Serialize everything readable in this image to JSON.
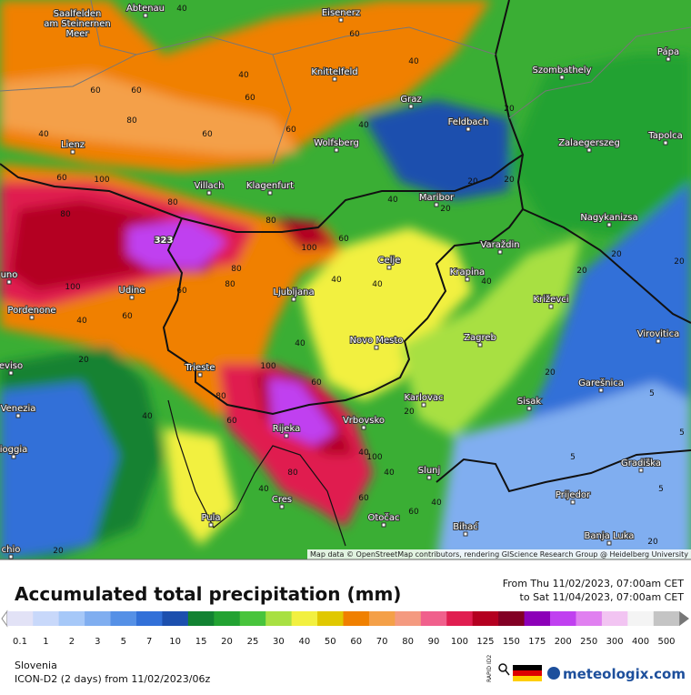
{
  "map": {
    "cities": [
      {
        "lines": [
          "Saalfelden",
          "am Steinernen",
          "Meer"
        ]
      },
      {
        "lines": [
          "Abtenau"
        ]
      },
      {
        "lines": [
          "Eisenerz"
        ]
      },
      {
        "lines": [
          "Knittelfeld"
        ]
      },
      {
        "lines": [
          "Graz"
        ]
      },
      {
        "lines": [
          "Szombathely"
        ]
      },
      {
        "lines": [
          "Pápa"
        ]
      },
      {
        "lines": [
          "Feldbach"
        ]
      },
      {
        "lines": [
          "Lienz"
        ]
      },
      {
        "lines": [
          "Wolfsberg"
        ]
      },
      {
        "lines": [
          "Zalaegerszeg"
        ]
      },
      {
        "lines": [
          "Tapolca"
        ]
      },
      {
        "lines": [
          "Villach"
        ]
      },
      {
        "lines": [
          "Klagenfurt"
        ]
      },
      {
        "lines": [
          "Maribor"
        ]
      },
      {
        "lines": [
          "Nagykanizsa"
        ]
      },
      {
        "lines": [
          "Varaždin"
        ]
      },
      {
        "lines": [
          "Udine"
        ]
      },
      {
        "lines": [
          "Celje"
        ]
      },
      {
        "lines": [
          "Krapina"
        ]
      },
      {
        "lines": [
          "Križevci"
        ]
      },
      {
        "lines": [
          "Pordenone"
        ]
      },
      {
        "lines": [
          "Ljubljana"
        ]
      },
      {
        "lines": [
          "Novo Mesto"
        ]
      },
      {
        "lines": [
          "Zagreb"
        ]
      },
      {
        "lines": [
          "Virovitica"
        ]
      },
      {
        "lines": [
          "Trieste"
        ]
      },
      {
        "lines": [
          "Karlovac"
        ]
      },
      {
        "lines": [
          "Sisak"
        ]
      },
      {
        "lines": [
          "Garešnica"
        ]
      },
      {
        "lines": [
          "Venezia"
        ]
      },
      {
        "lines": [
          "Rijeka"
        ]
      },
      {
        "lines": [
          "Vrbovsko"
        ]
      },
      {
        "lines": [
          "ioggia"
        ]
      },
      {
        "lines": [
          "Slunj"
        ]
      },
      {
        "lines": [
          "Gradiška"
        ]
      },
      {
        "lines": [
          "Prijedor"
        ]
      },
      {
        "lines": [
          "Cres"
        ]
      },
      {
        "lines": [
          "Pula"
        ]
      },
      {
        "lines": [
          "Otočac"
        ]
      },
      {
        "lines": [
          "Bihać"
        ]
      },
      {
        "lines": [
          "Banja Luka"
        ]
      },
      {
        "lines": [
          "uno"
        ]
      },
      {
        "lines": [
          "eviso"
        ]
      },
      {
        "lines": [
          "chio"
        ]
      }
    ],
    "max_label": "323",
    "contour_labels": [
      40,
      40,
      60,
      40,
      60,
      60,
      40,
      80,
      60,
      60,
      60,
      40,
      20,
      20,
      60,
      100,
      80,
      80,
      80,
      100,
      60,
      40,
      20,
      40,
      40,
      80,
      80,
      60,
      100,
      40,
      60,
      40,
      20,
      20,
      20,
      40,
      60,
      80,
      100,
      60,
      40,
      20,
      40,
      100,
      40,
      20,
      5,
      5,
      5,
      20,
      40,
      60,
      40,
      20,
      5,
      80,
      60,
      20,
      20
    ],
    "attribution": "Map data © OpenStreetMap contributors, rendering GIScience Research Group @ Heidelberg University"
  },
  "legend": {
    "title": "Accumulated total precipitation (mm)",
    "from": "From Thu 11/02/2023, 07:00am CET",
    "to": "to Sat 11/04/2023, 07:00am CET",
    "levels": [
      {
        "value": 0.1,
        "color": "#e2e2f6"
      },
      {
        "value": 1,
        "color": "#c8d8fa"
      },
      {
        "value": 2,
        "color": "#a6c8f8"
      },
      {
        "value": 3,
        "color": "#80aef0"
      },
      {
        "value": 5,
        "color": "#5590e6"
      },
      {
        "value": 7,
        "color": "#3270d8"
      },
      {
        "value": 10,
        "color": "#1c4fae"
      },
      {
        "value": 15,
        "color": "#128232"
      },
      {
        "value": 20,
        "color": "#22a232"
      },
      {
        "value": 25,
        "color": "#48c43c"
      },
      {
        "value": 30,
        "color": "#a8e042"
      },
      {
        "value": 40,
        "color": "#f2f040"
      },
      {
        "value": 50,
        "color": "#e0c800"
      },
      {
        "value": 60,
        "color": "#f08000"
      },
      {
        "value": 70,
        "color": "#f4a048"
      },
      {
        "value": 80,
        "color": "#f49a80"
      },
      {
        "value": 90,
        "color": "#f0608c"
      },
      {
        "value": 100,
        "color": "#e01e50"
      },
      {
        "value": 125,
        "color": "#b40020"
      },
      {
        "value": 150,
        "color": "#820024"
      },
      {
        "value": 175,
        "color": "#8c00b8"
      },
      {
        "value": 200,
        "color": "#c040f0"
      },
      {
        "value": 250,
        "color": "#e080f0"
      },
      {
        "value": 300,
        "color": "#f2c4f2"
      },
      {
        "value": 400,
        "color": "#f4f4f4"
      },
      {
        "value": 500,
        "color": "#c4c4c4"
      }
    ],
    "region": "Slovenia",
    "model": "ICON-D2 (2 days) from 11/02/2023/06z",
    "badge": "RAPID ID2",
    "brand": "meteologix.com"
  }
}
